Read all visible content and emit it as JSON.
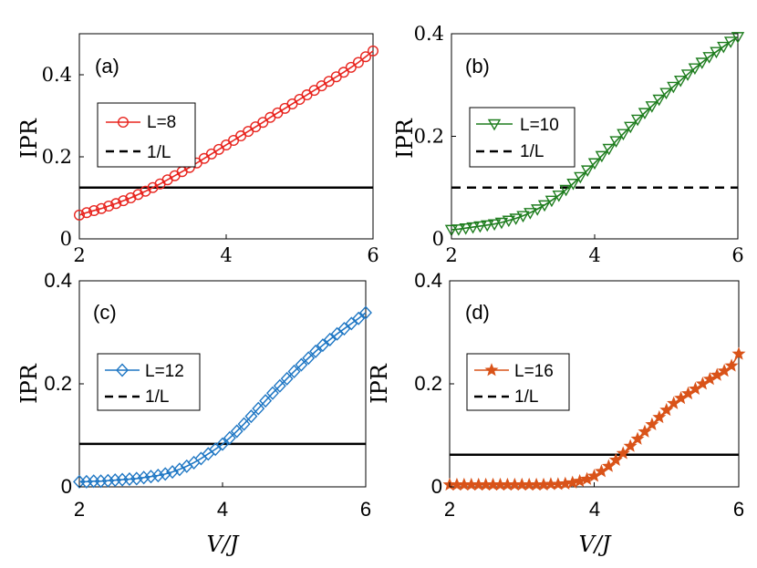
{
  "chart_data": [
    {
      "type": "line",
      "panel_label": "(a)",
      "xlabel": "",
      "ylabel": "IPR",
      "xlim": [
        2,
        6
      ],
      "ylim": [
        0,
        0.5
      ],
      "xticks": [
        "2",
        "4",
        "6"
      ],
      "yticks": [
        "0",
        "0.2",
        "0.4"
      ],
      "ytick_values": [
        0,
        0.2,
        0.4
      ],
      "tick_style": "serif",
      "legend_position": "upper-left",
      "series": [
        {
          "name": "L=8",
          "color": "#e8251f",
          "marker": "circle",
          "x": [
            2.0,
            2.1,
            2.2,
            2.3,
            2.4,
            2.5,
            2.6,
            2.7,
            2.8,
            2.9,
            3.0,
            3.1,
            3.2,
            3.3,
            3.4,
            3.5,
            3.6,
            3.7,
            3.8,
            3.9,
            4.0,
            4.1,
            4.2,
            4.3,
            4.4,
            4.5,
            4.6,
            4.7,
            4.8,
            4.9,
            5.0,
            5.1,
            5.2,
            5.3,
            5.4,
            5.5,
            5.6,
            5.7,
            5.8,
            5.9,
            6.0
          ],
          "y": [
            0.058,
            0.064,
            0.069,
            0.074,
            0.08,
            0.086,
            0.093,
            0.1,
            0.108,
            0.116,
            0.125,
            0.134,
            0.144,
            0.154,
            0.164,
            0.174,
            0.185,
            0.196,
            0.207,
            0.218,
            0.229,
            0.24,
            0.251,
            0.262,
            0.273,
            0.284,
            0.296,
            0.307,
            0.318,
            0.329,
            0.34,
            0.351,
            0.362,
            0.373,
            0.384,
            0.395,
            0.406,
            0.418,
            0.43,
            0.444,
            0.458
          ]
        },
        {
          "name": "1/L",
          "color": "#000000",
          "style": "dashed-legend-solid-line",
          "value": 0.125
        }
      ]
    },
    {
      "type": "line",
      "panel_label": "(b)",
      "xlabel": "",
      "ylabel": "IPR",
      "xlim": [
        2,
        6
      ],
      "ylim": [
        0,
        0.4
      ],
      "xticks": [
        "2",
        "4",
        "6"
      ],
      "yticks": [
        "0",
        "0.2",
        "0.4"
      ],
      "ytick_values": [
        0,
        0.2,
        0.4
      ],
      "tick_style": "serif",
      "legend_position": "upper-left",
      "series": [
        {
          "name": "L=10",
          "color": "#1e7d1e",
          "marker": "triangle-down",
          "x": [
            2.0,
            2.1,
            2.2,
            2.3,
            2.4,
            2.5,
            2.6,
            2.7,
            2.8,
            2.9,
            3.0,
            3.1,
            3.2,
            3.3,
            3.4,
            3.5,
            3.6,
            3.7,
            3.8,
            3.9,
            4.0,
            4.1,
            4.2,
            4.3,
            4.4,
            4.5,
            4.6,
            4.7,
            4.8,
            4.9,
            5.0,
            5.1,
            5.2,
            5.3,
            5.4,
            5.5,
            5.6,
            5.7,
            5.8,
            5.9,
            6.0
          ],
          "y": [
            0.018,
            0.019,
            0.021,
            0.023,
            0.025,
            0.027,
            0.029,
            0.032,
            0.036,
            0.04,
            0.045,
            0.051,
            0.058,
            0.066,
            0.075,
            0.085,
            0.096,
            0.108,
            0.121,
            0.134,
            0.148,
            0.162,
            0.176,
            0.191,
            0.205,
            0.219,
            0.233,
            0.246,
            0.259,
            0.272,
            0.285,
            0.297,
            0.309,
            0.321,
            0.333,
            0.344,
            0.355,
            0.365,
            0.375,
            0.385,
            0.394
          ]
        },
        {
          "name": "1/L",
          "color": "#000000",
          "style": "dashed",
          "value": 0.1
        }
      ]
    },
    {
      "type": "line",
      "panel_label": "(c)",
      "xlabel": "V/J",
      "ylabel": "IPR",
      "xlim": [
        2,
        6
      ],
      "ylim": [
        0,
        0.4
      ],
      "xticks": [
        "2",
        "4",
        "6"
      ],
      "yticks": [
        "0",
        "0.2",
        "0.4"
      ],
      "ytick_values": [
        0,
        0.2,
        0.4
      ],
      "tick_style": "sans",
      "legend_position": "upper-left",
      "series": [
        {
          "name": "L=12",
          "color": "#1f77c4",
          "marker": "diamond",
          "x": [
            2.0,
            2.1,
            2.2,
            2.3,
            2.4,
            2.5,
            2.6,
            2.7,
            2.8,
            2.9,
            3.0,
            3.1,
            3.2,
            3.3,
            3.4,
            3.5,
            3.6,
            3.7,
            3.8,
            3.9,
            4.0,
            4.1,
            4.2,
            4.3,
            4.4,
            4.5,
            4.6,
            4.7,
            4.8,
            4.9,
            5.0,
            5.1,
            5.2,
            5.3,
            5.4,
            5.5,
            5.6,
            5.7,
            5.8,
            5.9,
            6.0
          ],
          "y": [
            0.01,
            0.01,
            0.011,
            0.011,
            0.012,
            0.013,
            0.014,
            0.015,
            0.016,
            0.018,
            0.02,
            0.022,
            0.025,
            0.029,
            0.034,
            0.04,
            0.047,
            0.055,
            0.064,
            0.073,
            0.083,
            0.095,
            0.108,
            0.122,
            0.137,
            0.152,
            0.167,
            0.182,
            0.196,
            0.21,
            0.224,
            0.237,
            0.25,
            0.263,
            0.275,
            0.286,
            0.297,
            0.307,
            0.317,
            0.327,
            0.338
          ]
        },
        {
          "name": "1/L",
          "color": "#000000",
          "style": "dashed-legend-solid-line",
          "value": 0.0833
        }
      ]
    },
    {
      "type": "line",
      "panel_label": "(d)",
      "xlabel": "V/J",
      "ylabel": "IPR",
      "xlim": [
        2,
        6
      ],
      "ylim": [
        0,
        0.4
      ],
      "xticks": [
        "2",
        "4",
        "6"
      ],
      "yticks": [
        "0",
        "0.2",
        "0.4"
      ],
      "ytick_values": [
        0,
        0.2,
        0.4
      ],
      "tick_style": "sans",
      "legend_position": "upper-left",
      "series": [
        {
          "name": "L=16",
          "color": "#d95319",
          "marker": "star",
          "x": [
            2.0,
            2.1,
            2.2,
            2.3,
            2.4,
            2.5,
            2.6,
            2.7,
            2.8,
            2.9,
            3.0,
            3.1,
            3.2,
            3.3,
            3.4,
            3.5,
            3.6,
            3.7,
            3.8,
            3.9,
            4.0,
            4.1,
            4.2,
            4.3,
            4.4,
            4.5,
            4.6,
            4.7,
            4.8,
            4.9,
            5.0,
            5.1,
            5.2,
            5.3,
            5.4,
            5.5,
            5.6,
            5.7,
            5.8,
            5.9,
            6.0
          ],
          "y": [
            0.004,
            0.004,
            0.004,
            0.004,
            0.004,
            0.004,
            0.004,
            0.004,
            0.004,
            0.004,
            0.004,
            0.004,
            0.004,
            0.004,
            0.005,
            0.005,
            0.006,
            0.008,
            0.011,
            0.015,
            0.021,
            0.03,
            0.04,
            0.052,
            0.065,
            0.079,
            0.093,
            0.107,
            0.121,
            0.135,
            0.149,
            0.162,
            0.172,
            0.181,
            0.19,
            0.2,
            0.209,
            0.217,
            0.225,
            0.235,
            0.258
          ]
        },
        {
          "name": "1/L",
          "color": "#000000",
          "style": "dashed-legend-solid-line",
          "value": 0.0625
        }
      ]
    }
  ]
}
